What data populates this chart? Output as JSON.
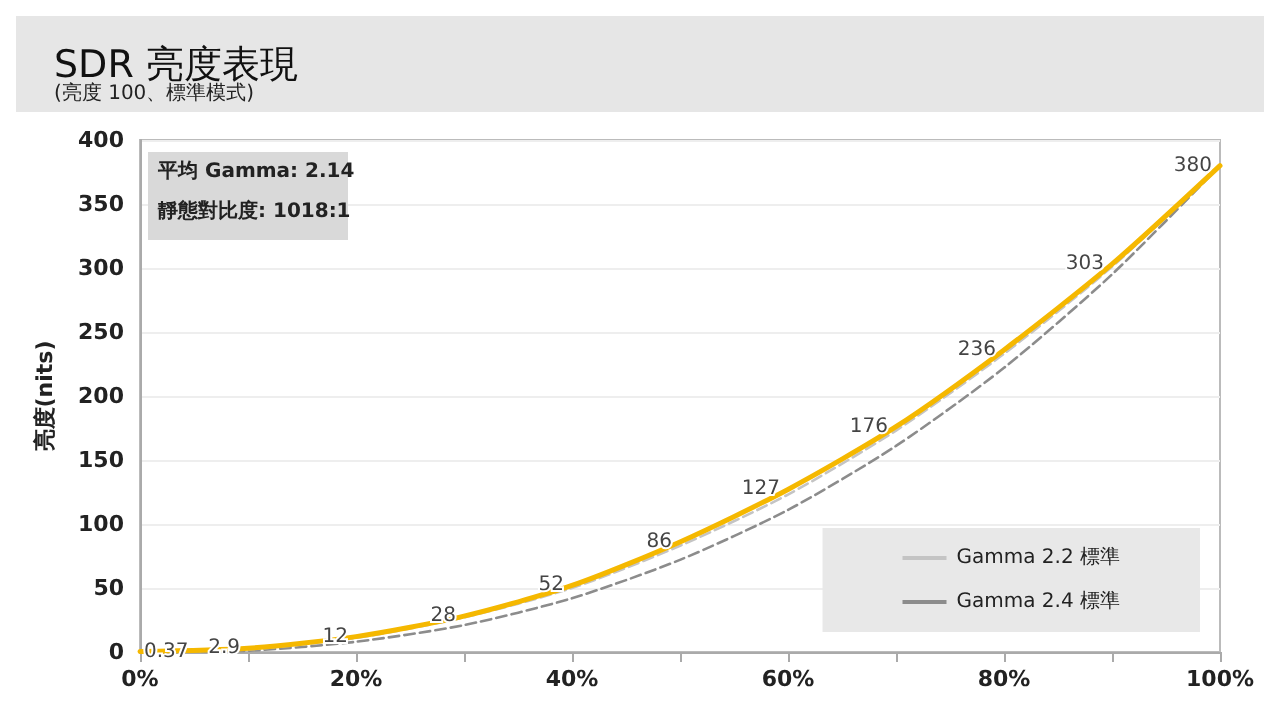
{
  "chart_data": {
    "type": "line",
    "title": "SDR 亮度表現",
    "subtitle": "(亮度 100、標準模式)",
    "ylabel": "亮度(nits)",
    "annotations": [
      "平均 Gamma: 2.14",
      "靜態對比度: 1018:1"
    ],
    "x": [
      0,
      10,
      20,
      30,
      40,
      50,
      60,
      70,
      80,
      90,
      100
    ],
    "series": [
      {
        "color": "#f5b800",
        "line_style": "solid",
        "values": [
          0.37,
          2.9,
          12,
          28,
          52,
          86,
          127,
          176,
          236,
          303,
          380
        ],
        "value_labels": [
          "0.37",
          "2.9",
          "12",
          "28",
          "52",
          "86",
          "127",
          "176",
          "236",
          "303",
          "380"
        ]
      },
      {
        "name": "Gamma 2.2 標準",
        "color": "#c4c4c4",
        "line_style": "dashed",
        "values": [
          0,
          2,
          11,
          27,
          50,
          83,
          123,
          173,
          233,
          301,
          380
        ]
      },
      {
        "name": "Gamma 2.4 標準",
        "color": "#8c8c8c",
        "line_style": "dashed",
        "values": [
          0,
          1,
          8,
          21,
          42,
          72,
          111,
          161,
          222,
          295,
          380
        ]
      }
    ],
    "xlim": [
      0,
      100
    ],
    "xticks": [
      {
        "value": 0,
        "label": "0%"
      },
      {
        "value": 10,
        "label": null
      },
      {
        "value": 20,
        "label": "20%"
      },
      {
        "value": 30,
        "label": null
      },
      {
        "value": 40,
        "label": "40%"
      },
      {
        "value": 50,
        "label": null
      },
      {
        "value": 60,
        "label": "60%"
      },
      {
        "value": 70,
        "label": null
      },
      {
        "value": 80,
        "label": "80%"
      },
      {
        "value": 90,
        "label": null
      },
      {
        "value": 100,
        "label": "100%"
      }
    ],
    "ylim": [
      0,
      400
    ],
    "yticks": [
      0,
      50,
      100,
      150,
      200,
      250,
      300,
      350,
      400
    ],
    "grid": "y",
    "legend": "bottom right",
    "marker": "none"
  }
}
